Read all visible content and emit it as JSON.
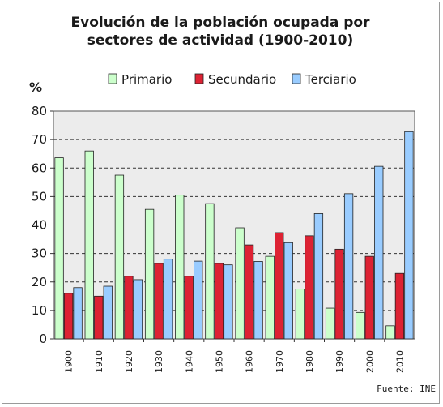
{
  "chart_data": {
    "type": "bar",
    "title_lines": [
      "Evolución de la población ocupada por",
      "sectores de actividad (1900-2010)"
    ],
    "ylabel": "%",
    "xlabel": "",
    "ylim": [
      0,
      80
    ],
    "yticks": [
      0,
      10,
      20,
      30,
      40,
      50,
      60,
      70,
      80
    ],
    "grid": true,
    "legend_position": "top",
    "categories": [
      "1900",
      "1910",
      "1920",
      "1930",
      "1940",
      "1950",
      "1960",
      "1970",
      "1980",
      "1990",
      "2000",
      "2010"
    ],
    "series": [
      {
        "name": "Primario",
        "color": "#ccffcc",
        "values": [
          63.6,
          66.0,
          57.5,
          45.5,
          50.5,
          47.5,
          39.0,
          29.0,
          17.5,
          10.8,
          9.3,
          4.6
        ]
      },
      {
        "name": "Secundario",
        "color": "#dd2233",
        "values": [
          16.0,
          15.0,
          22.0,
          26.5,
          22.0,
          26.5,
          33.0,
          37.3,
          36.2,
          31.5,
          29.0,
          23.0
        ]
      },
      {
        "name": "Terciario",
        "color": "#99ccff",
        "values": [
          18.0,
          18.5,
          20.8,
          28.0,
          27.3,
          26.0,
          27.2,
          33.8,
          44.0,
          51.0,
          60.6,
          72.8
        ]
      }
    ],
    "source": "Fuente: INE"
  }
}
